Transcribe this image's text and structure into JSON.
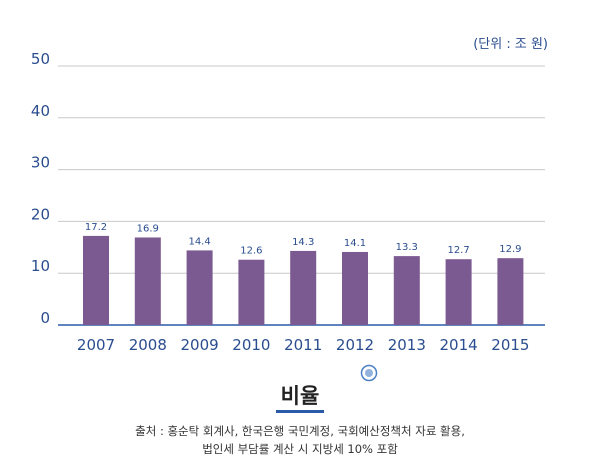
{
  "chart_data": {
    "type": "bar",
    "unit_note": "(단위 : 조 원)",
    "categories": [
      "2007",
      "2008",
      "2009",
      "2010",
      "2011",
      "2012",
      "2013",
      "2014",
      "2015"
    ],
    "values": [
      17.2,
      16.9,
      14.4,
      12.6,
      14.3,
      14.1,
      13.3,
      12.7,
      12.9
    ],
    "data_labels": [
      "17.2",
      "16.9",
      "14.4",
      "12.6",
      "14.3",
      "14.1",
      "13.3",
      "12.7",
      "12.9"
    ],
    "yticks": [
      "0",
      "10",
      "20",
      "30",
      "40",
      "50"
    ],
    "ylim": [
      0,
      50
    ],
    "grid": true,
    "bar_color": "#7b5a91",
    "axis_color": "#2a5aa8",
    "label_color": "#2a4d8f"
  },
  "footer": {
    "title": "비율",
    "source_line1": "출처 : 홍순탁 회계사, 한국은행 국민계정, 국회예산정책처 자료 활용,",
    "source_line2": "법인세 부담률 계산 시 지방세 10% 포함"
  }
}
